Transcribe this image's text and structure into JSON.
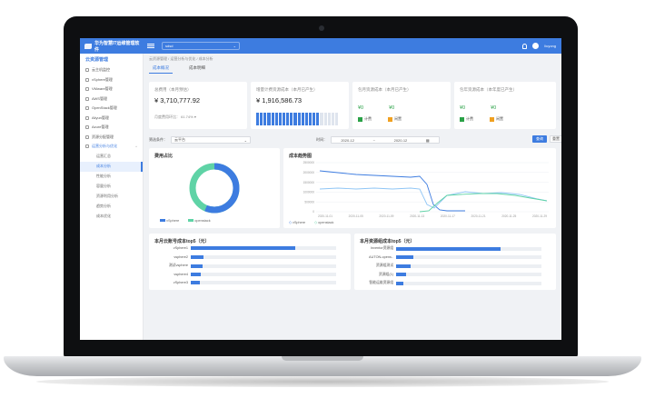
{
  "app": {
    "title": "华为智慧IT运维管理软件",
    "project": "sdsd",
    "user": "liuyong"
  },
  "sidebar": {
    "head": "云资源管理",
    "items": [
      {
        "label": "云主机监控"
      },
      {
        "label": "vSphere管理"
      },
      {
        "label": "VMware管理"
      },
      {
        "label": "AWS管理"
      },
      {
        "label": "OpenStack管理"
      },
      {
        "label": "Aliyun管理"
      },
      {
        "label": "Azure管理"
      },
      {
        "label": "资源分配管理"
      }
    ],
    "parent": "运营分析与优化",
    "subs": [
      {
        "label": "运营汇总",
        "active": false
      },
      {
        "label": "成本分析",
        "active": true
      },
      {
        "label": "性能分析",
        "active": false
      },
      {
        "label": "容量分析",
        "active": false
      },
      {
        "label": "资源利用分析",
        "active": false
      },
      {
        "label": "趋势分析",
        "active": false
      },
      {
        "label": "成本优化",
        "active": false
      }
    ]
  },
  "breadcrumb": "云资源管理 / 运营分析与优化 / 成本分析",
  "tabs": [
    {
      "label": "成本概况",
      "active": true
    },
    {
      "label": "成本明细",
      "active": false
    }
  ],
  "cards": {
    "total": {
      "title": "总费用（本月预估）",
      "value": "¥ 3,710,777.92",
      "ratio_label": "月度费用环比：",
      "ratio_value": "61.74%"
    },
    "cpu": {
      "title": "增量计费资源成本（本月已产生）",
      "value": "¥ 1,916,586.73",
      "fill": 0.78
    },
    "mem": {
      "title": "包月资源成本（本月已产生）",
      "v1": "¥0",
      "v2": "¥0",
      "leg1": "计费",
      "leg2": "闲置"
    },
    "disk": {
      "title": "包年资源成本（本年度已产生）",
      "v1": "¥0",
      "v2": "¥0",
      "leg1": "计费",
      "leg2": "闲置"
    }
  },
  "filter": {
    "label": "筛选条件：",
    "select": "云平台",
    "time_label": "时间：",
    "from": "2020-12",
    "sep": "~",
    "to": "2020-12",
    "query": "查询",
    "reset": "重置"
  },
  "pie": {
    "title": "费用占比",
    "legend": [
      "vSphere",
      "openstack"
    ],
    "colors": [
      "#3d7ce0",
      "#5fd3a6"
    ]
  },
  "trend": {
    "title": "成本趋势图",
    "legend": [
      "vSphere",
      "openstack"
    ],
    "yticks": [
      "2500000",
      "2000000",
      "1500000",
      "1000000",
      "500000",
      "0"
    ],
    "xticks": [
      "2020-11-01",
      "2020-11-05",
      "2020-11-09",
      "2020-11-13",
      "2020-11-17",
      "2020-11-21",
      "2020-11-25",
      "2020-11-29"
    ]
  },
  "rank_left": {
    "title": "本月云账号成本top5（元）",
    "rows": [
      {
        "name": "vSphere1",
        "pct": 0.72
      },
      {
        "name": "vsphere2",
        "pct": 0.09
      },
      {
        "name": "测试vsphere",
        "pct": 0.08
      },
      {
        "name": "vsphere4",
        "pct": 0.07
      },
      {
        "name": "vSphere3",
        "pct": 0.06
      }
    ]
  },
  "rank_right": {
    "title": "本月资源组成本top5（元）",
    "rows": [
      {
        "name": "Inventor资源组",
        "pct": 0.72
      },
      {
        "name": "AUTON-opens..",
        "pct": 0.12
      },
      {
        "name": "资源组测试",
        "pct": 0.1
      },
      {
        "name": "资源组(1)",
        "pct": 0.07
      },
      {
        "name": "智能运维资源组",
        "pct": 0.05
      }
    ]
  }
}
